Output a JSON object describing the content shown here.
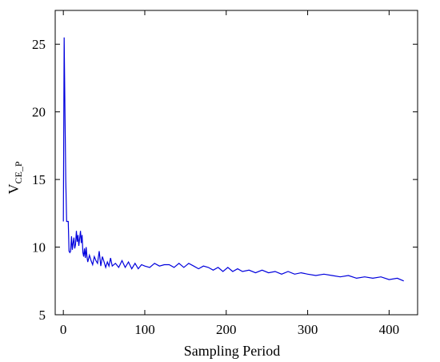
{
  "chart_data": {
    "type": "line",
    "title": "",
    "xlabel": "Sampling Period",
    "ylabel_main": "V",
    "ylabel_sub": "CE_P",
    "xlim": [
      -10,
      435
    ],
    "ylim": [
      5,
      27.5
    ],
    "x_ticks": [
      0,
      100,
      200,
      300,
      400
    ],
    "y_ticks": [
      5,
      10,
      15,
      20,
      25
    ],
    "grid": false,
    "legend": "none",
    "line_color": "#0000dd",
    "series": [
      {
        "x": [
          0,
          1,
          2,
          3,
          4,
          5,
          6,
          7,
          8,
          9,
          10,
          11,
          12,
          13,
          14,
          15,
          16,
          17,
          18,
          19,
          20,
          21,
          22,
          23,
          24,
          25,
          26,
          27,
          28,
          29,
          30,
          32,
          34,
          36,
          38,
          40,
          42,
          44,
          46,
          48,
          50,
          52,
          54,
          56,
          58,
          60,
          64,
          68,
          72,
          76,
          80,
          84,
          88,
          92,
          96,
          100,
          106,
          112,
          118,
          124,
          130,
          136,
          142,
          148,
          154,
          160,
          166,
          172,
          178,
          184,
          190,
          196,
          202,
          208,
          214,
          220,
          228,
          236,
          244,
          252,
          260,
          268,
          276,
          284,
          292,
          300,
          310,
          320,
          330,
          340,
          350,
          360,
          370,
          380,
          390,
          400,
          410,
          418
        ],
        "y": [
          11.9,
          25.5,
          20.0,
          15.0,
          11.9,
          11.9,
          11.9,
          9.7,
          9.6,
          9.7,
          10.8,
          9.8,
          10.3,
          10.7,
          9.9,
          10.2,
          11.2,
          10.4,
          10.9,
          10.1,
          10.6,
          11.2,
          10.3,
          10.9,
          9.6,
          9.3,
          9.9,
          9.2,
          10.0,
          9.3,
          8.9,
          9.4,
          9.0,
          8.7,
          9.3,
          9.0,
          8.8,
          9.7,
          8.6,
          9.3,
          8.9,
          8.5,
          8.9,
          8.6,
          9.2,
          8.6,
          8.8,
          8.5,
          9.0,
          8.5,
          8.9,
          8.4,
          8.8,
          8.4,
          8.7,
          8.6,
          8.5,
          8.8,
          8.6,
          8.7,
          8.7,
          8.5,
          8.8,
          8.5,
          8.8,
          8.6,
          8.4,
          8.6,
          8.5,
          8.3,
          8.5,
          8.2,
          8.5,
          8.2,
          8.4,
          8.2,
          8.3,
          8.1,
          8.3,
          8.1,
          8.2,
          8.0,
          8.2,
          8.0,
          8.1,
          8.0,
          7.9,
          8.0,
          7.9,
          7.8,
          7.9,
          7.7,
          7.8,
          7.7,
          7.8,
          7.6,
          7.7,
          7.5
        ]
      }
    ]
  }
}
